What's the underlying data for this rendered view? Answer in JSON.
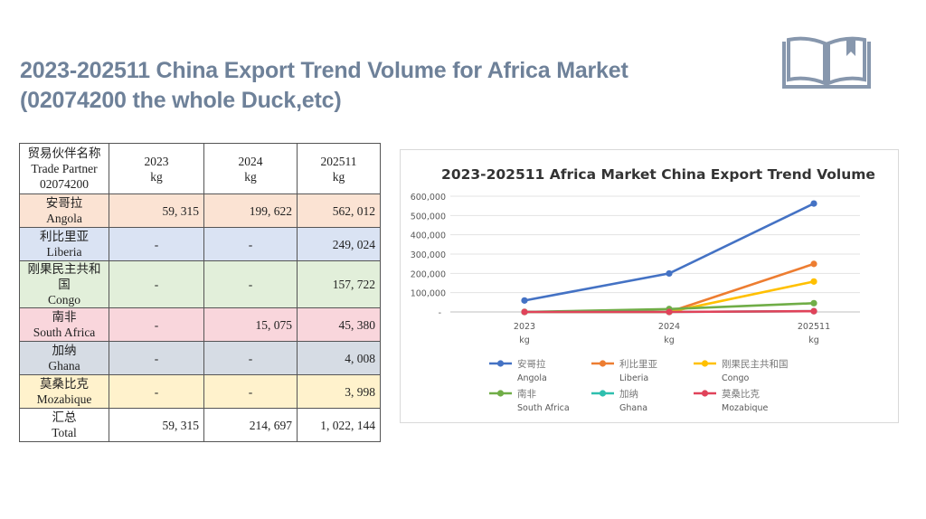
{
  "slide": {
    "title_line1": "2023-202511  China Export Trend Volume for Africa Market",
    "title_line2": "(02074200 the whole Duck,etc)",
    "icon": "open-book-icon"
  },
  "table": {
    "header": {
      "partner": [
        "贸易伙伴名称",
        "Trade Partner",
        "02074200"
      ],
      "cols": [
        [
          "2023",
          "kg"
        ],
        [
          "2024",
          "kg"
        ],
        [
          "202511",
          "kg"
        ]
      ]
    },
    "rows": [
      {
        "cn": "安哥拉",
        "en": "Angola",
        "v": [
          "59, 315",
          "199, 622",
          "562, 012"
        ],
        "color": "#fbe3d3"
      },
      {
        "cn": "利比里亚",
        "en": "Liberia",
        "v": [
          "-",
          "-",
          "249, 024"
        ],
        "color": "#dae3f3"
      },
      {
        "cn": "刚果民主共和国",
        "en": "Congo",
        "v": [
          "-",
          "-",
          "157, 722"
        ],
        "color": "#e2efda"
      },
      {
        "cn": "南非",
        "en": "South Africa",
        "v": [
          "-",
          "15, 075",
          "45, 380"
        ],
        "color": "#f9d6dc"
      },
      {
        "cn": "加纳",
        "en": "Ghana",
        "v": [
          "-",
          "-",
          "4, 008"
        ],
        "color": "#d6dce4"
      },
      {
        "cn": "莫桑比克",
        "en": "Mozabique",
        "v": [
          "-",
          "-",
          "3, 998"
        ],
        "color": "#fff2cc"
      },
      {
        "cn": "汇总",
        "en": "Total",
        "v": [
          "59, 315",
          "214, 697",
          "1, 022, 144"
        ],
        "color": "#ffffff"
      }
    ]
  },
  "chart_data": {
    "type": "line",
    "title": "2023-202511 Africa Market China Export Trend Volume",
    "categories": [
      [
        "2023",
        "kg"
      ],
      [
        "2024",
        "kg"
      ],
      [
        "202511",
        "kg"
      ]
    ],
    "ylim": [
      0,
      600000
    ],
    "yticks": [
      0,
      100000,
      200000,
      300000,
      400000,
      500000,
      600000
    ],
    "ytick_labels": [
      "-",
      "100,000",
      "200,000",
      "300,000",
      "400,000",
      "500,000",
      "600,000"
    ],
    "grid": true,
    "legend_position": "bottom",
    "series": [
      {
        "name_cn": "安哥拉",
        "name_en": "Angola",
        "color": "#4472c4",
        "values": [
          59315,
          199622,
          562012
        ]
      },
      {
        "name_cn": "利比里亚",
        "name_en": "Liberia",
        "color": "#ed7d31",
        "values": [
          0,
          0,
          249024
        ]
      },
      {
        "name_cn": "刚果民主共和国",
        "name_en": "Congo",
        "color": "#ffc000",
        "values": [
          0,
          0,
          157722
        ]
      },
      {
        "name_cn": "南非",
        "name_en": "South Africa",
        "color": "#70ad47",
        "values": [
          0,
          15075,
          45380
        ]
      },
      {
        "name_cn": "加纳",
        "name_en": "Ghana",
        "color": "#2ebfae",
        "values": [
          0,
          0,
          4008
        ]
      },
      {
        "name_cn": "莫桑比克",
        "name_en": "Mozabique",
        "color": "#e0435a",
        "values": [
          0,
          0,
          3998
        ]
      }
    ]
  }
}
